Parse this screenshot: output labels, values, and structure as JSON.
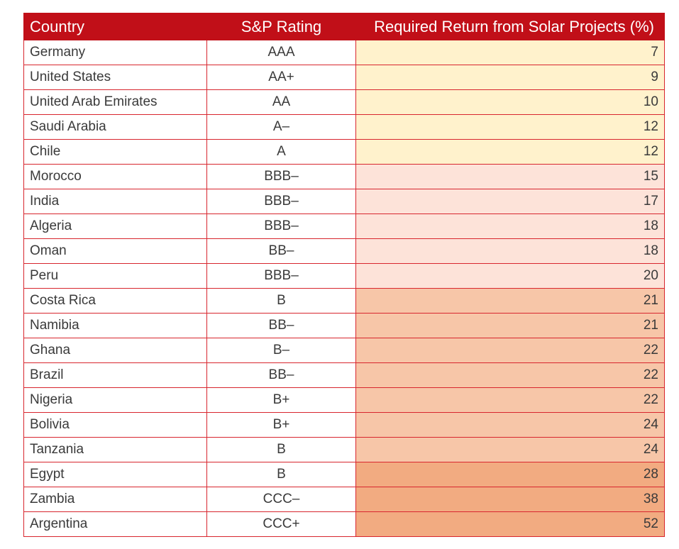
{
  "table": {
    "header": [
      "Country",
      "S&P Rating",
      "Required Return from Solar Projects (%)"
    ],
    "rows": [
      [
        "Germany",
        "AAA",
        7
      ],
      [
        "United States",
        "AA+",
        9
      ],
      [
        "United Arab Emirates",
        "AA",
        10
      ],
      [
        "Saudi Arabia",
        "A–",
        12
      ],
      [
        "Chile",
        "A",
        12
      ],
      [
        "Morocco",
        "BBB–",
        15
      ],
      [
        "India",
        "BBB–",
        17
      ],
      [
        "Algeria",
        "BBB–",
        18
      ],
      [
        "Oman",
        "BB–",
        18
      ],
      [
        "Peru",
        "BBB–",
        20
      ],
      [
        "Costa Rica",
        "B",
        21
      ],
      [
        "Namibia",
        "BB–",
        21
      ],
      [
        "Ghana",
        "B–",
        22
      ],
      [
        "Brazil",
        "BB–",
        22
      ],
      [
        "Nigeria",
        "B+",
        22
      ],
      [
        "Bolivia",
        "B+",
        24
      ],
      [
        "Tanzania",
        "B",
        24
      ],
      [
        "Egypt",
        "B",
        28
      ],
      [
        "Zambia",
        "CCC–",
        38
      ],
      [
        "Argentina",
        "CCC+",
        52
      ]
    ]
  }
}
